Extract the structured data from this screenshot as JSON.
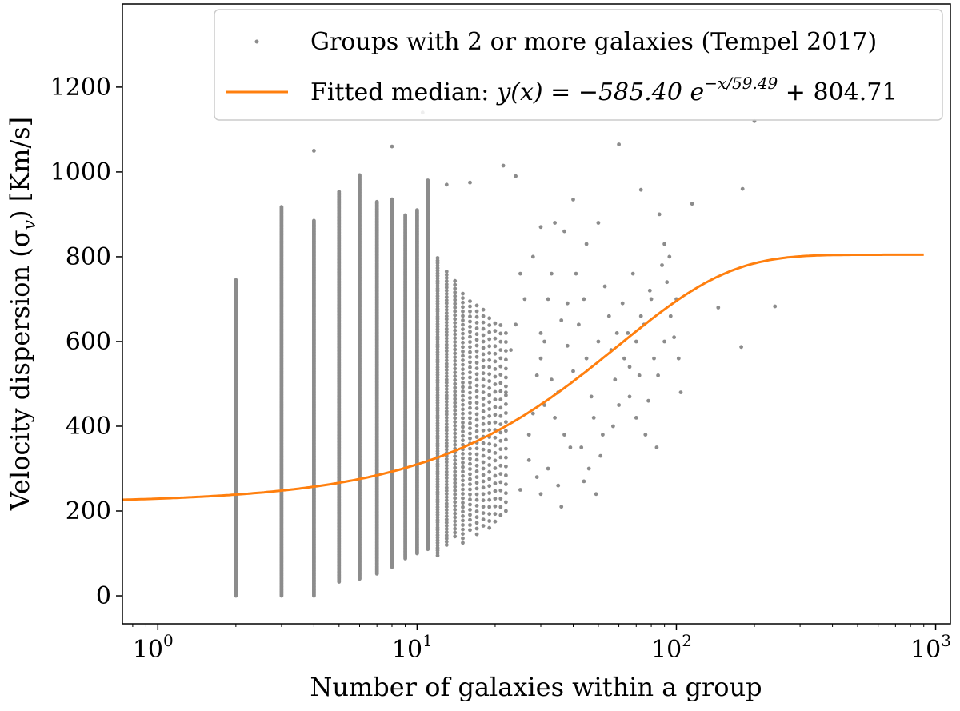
{
  "chart_data": {
    "type": "scatter",
    "title": "",
    "xlabel": "Number of galaxies within a group",
    "ylabel": "Velocity dispersion (σ",
    "ylabel_sub": "v",
    "ylabel_unit": ") [Km/s]",
    "x_scale": "log",
    "xlim": [
      0.73,
      1140
    ],
    "ylim": [
      -66,
      1396
    ],
    "xticks": [
      {
        "value": 1,
        "base": "10",
        "exp": "0"
      },
      {
        "value": 10,
        "base": "10",
        "exp": "1"
      },
      {
        "value": 100,
        "base": "10",
        "exp": "2"
      },
      {
        "value": 1000,
        "base": "10",
        "exp": "3"
      }
    ],
    "yticks": [
      0,
      200,
      400,
      600,
      800,
      1000,
      1200
    ],
    "grid": false,
    "legend_placement": "top-right",
    "colors": {
      "scatter": "#8c8c8c",
      "fit": "#ff7f0e",
      "axes": "#000000",
      "legend_border": "#cccccc"
    },
    "series": [
      {
        "name": "Groups with 2 or more galaxies (Tempel 2017)",
        "kind": "scatter",
        "dense_columns_n_min_max": [
          [
            2,
            0,
            745
          ],
          [
            3,
            0,
            918
          ],
          [
            4,
            0,
            887
          ],
          [
            5,
            33,
            955
          ],
          [
            6,
            40,
            993
          ],
          [
            7,
            52,
            930
          ],
          [
            8,
            68,
            937
          ],
          [
            9,
            88,
            900
          ],
          [
            10,
            100,
            910
          ],
          [
            11,
            110,
            980
          ],
          [
            12,
            95,
            800
          ],
          [
            13,
            120,
            770
          ],
          [
            14,
            140,
            750
          ],
          [
            15,
            125,
            720
          ],
          [
            16,
            155,
            700
          ],
          [
            17,
            145,
            690
          ],
          [
            18,
            165,
            680
          ],
          [
            19,
            160,
            660
          ],
          [
            20,
            175,
            650
          ],
          [
            21,
            190,
            640
          ],
          [
            22,
            200,
            620
          ]
        ],
        "points": [
          [
            30,
            620
          ],
          [
            30,
            560
          ],
          [
            32,
            700
          ],
          [
            33,
            510
          ],
          [
            35,
            480
          ],
          [
            36,
            650
          ],
          [
            38,
            590
          ],
          [
            40,
            530
          ],
          [
            31,
            450
          ],
          [
            34,
            420
          ],
          [
            37,
            380
          ],
          [
            39,
            350
          ],
          [
            32,
            300
          ],
          [
            35,
            260
          ],
          [
            30,
            240
          ],
          [
            36,
            210
          ],
          [
            38,
            690
          ],
          [
            33,
            760
          ],
          [
            34,
            880
          ],
          [
            37,
            860
          ],
          [
            31,
            600
          ],
          [
            29,
            520
          ],
          [
            28,
            430
          ],
          [
            27,
            380
          ],
          [
            26,
            700
          ],
          [
            25,
            760
          ],
          [
            24,
            640
          ],
          [
            23,
            580
          ],
          [
            22,
            480
          ],
          [
            27,
            320
          ],
          [
            29,
            280
          ],
          [
            25,
            250
          ],
          [
            42,
            640
          ],
          [
            44,
            700
          ],
          [
            45,
            560
          ],
          [
            47,
            470
          ],
          [
            48,
            420
          ],
          [
            50,
            600
          ],
          [
            52,
            380
          ],
          [
            55,
            660
          ],
          [
            58,
            510
          ],
          [
            60,
            450
          ],
          [
            43,
            350
          ],
          [
            46,
            300
          ],
          [
            49,
            240
          ],
          [
            41,
            760
          ],
          [
            53,
            730
          ],
          [
            56,
            580
          ],
          [
            59,
            620
          ],
          [
            45,
            830
          ],
          [
            62,
            690
          ],
          [
            57,
            400
          ],
          [
            51,
            330
          ],
          [
            44,
            270
          ],
          [
            63,
            560
          ],
          [
            66,
            540
          ],
          [
            68,
            760
          ],
          [
            70,
            600
          ],
          [
            72,
            520
          ],
          [
            75,
            640
          ],
          [
            78,
            460
          ],
          [
            80,
            700
          ],
          [
            82,
            560
          ],
          [
            85,
            520
          ],
          [
            88,
            780
          ],
          [
            90,
            600
          ],
          [
            92,
            740
          ],
          [
            95,
            660
          ],
          [
            98,
            610
          ],
          [
            100,
            700
          ],
          [
            102,
            560
          ],
          [
            104,
            480
          ],
          [
            70,
            420
          ],
          [
            76,
            380
          ],
          [
            84,
            350
          ],
          [
            66,
            470
          ],
          [
            90,
            830
          ],
          [
            94,
            800
          ],
          [
            86,
            900
          ],
          [
            79,
            720
          ],
          [
            73,
            660
          ],
          [
            65,
            620
          ],
          [
            4,
            1050
          ],
          [
            8,
            1060
          ],
          [
            10.5,
            1140
          ],
          [
            21.5,
            1015
          ],
          [
            24,
            990
          ],
          [
            16,
            975
          ],
          [
            60,
            1065
          ],
          [
            73,
            958
          ],
          [
            115,
            925
          ],
          [
            180,
            960
          ],
          [
            200,
            1120
          ],
          [
            145,
            680
          ],
          [
            240,
            683
          ],
          [
            178,
            587
          ],
          [
            30,
            870
          ],
          [
            40,
            935
          ],
          [
            13,
            970
          ],
          [
            28,
            800
          ],
          [
            50,
            880
          ]
        ]
      },
      {
        "name": "Fitted median",
        "kind": "line",
        "model": "y(x) = a e^{-x/b} + c",
        "a": -585.4,
        "b": 59.49,
        "c": 804.71,
        "x_range": [
          0.73,
          900
        ]
      }
    ],
    "legend": {
      "scatter_label": "Groups with 2 or more galaxies (Tempel 2017)",
      "fit_prefix": "Fitted median:",
      "fit_lhs": "y(x) = −585.40 e",
      "fit_exp": "−x/59.49",
      "fit_rhs": " + 804.71"
    }
  }
}
